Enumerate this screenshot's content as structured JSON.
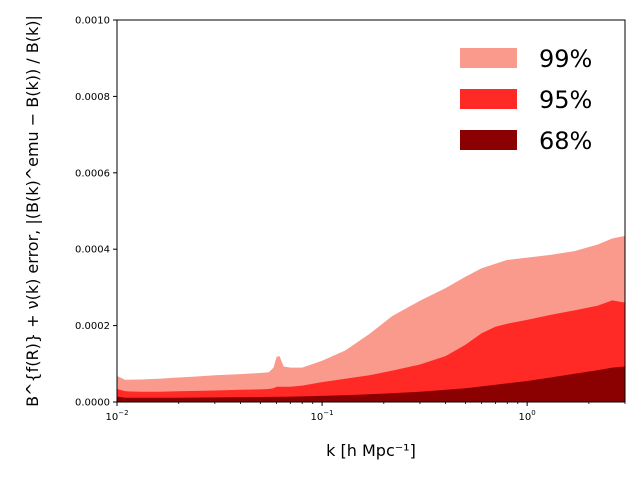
{
  "chart_data": {
    "type": "area",
    "x_scale": "log",
    "xlim": [
      0.01,
      3.0
    ],
    "ylim": [
      0.0,
      0.001
    ],
    "xlabel": "k [h Mpc⁻¹]",
    "ylabel": "B^{f(R)} + ν(k) error, |(B(k)^emu − B(k)) / B(k)|",
    "x_ticks": [
      {
        "value": 0.01,
        "base": "10",
        "exp": "−2"
      },
      {
        "value": 0.1,
        "base": "10",
        "exp": "−1"
      },
      {
        "value": 1.0,
        "base": "10",
        "exp": "0"
      }
    ],
    "y_ticks": [
      {
        "value": 0.0,
        "label": "0.0000"
      },
      {
        "value": 0.0002,
        "label": "0.0002"
      },
      {
        "value": 0.0004,
        "label": "0.0004"
      },
      {
        "value": 0.0006,
        "label": "0.0006"
      },
      {
        "value": 0.0008,
        "label": "0.0008"
      },
      {
        "value": 0.001,
        "label": "0.0010"
      }
    ],
    "legend_position": "top-right",
    "series": [
      {
        "name": "99%",
        "color": "#f99a8d",
        "x": [
          0.01,
          0.011,
          0.013,
          0.016,
          0.02,
          0.025,
          0.03,
          0.04,
          0.05,
          0.055,
          0.058,
          0.06,
          0.062,
          0.065,
          0.07,
          0.08,
          0.1,
          0.13,
          0.17,
          0.22,
          0.3,
          0.4,
          0.5,
          0.6,
          0.7,
          0.8,
          1.0,
          1.3,
          1.7,
          2.2,
          2.6,
          3.0
        ],
        "values": [
          6.8e-05,
          5.8e-05,
          5.9e-05,
          6.1e-05,
          6.4e-05,
          6.7e-05,
          7e-05,
          7.3e-05,
          7.6e-05,
          7.8e-05,
          9e-05,
          0.000118,
          0.00012,
          9.3e-05,
          9e-05,
          9e-05,
          0.000108,
          0.000135,
          0.000178,
          0.000225,
          0.000265,
          0.000298,
          0.000328,
          0.00035,
          0.000362,
          0.000372,
          0.000378,
          0.000385,
          0.000395,
          0.000412,
          0.000428,
          0.000435
        ]
      },
      {
        "name": "95%",
        "color": "#ff2a26",
        "x": [
          0.01,
          0.011,
          0.013,
          0.016,
          0.02,
          0.025,
          0.03,
          0.04,
          0.05,
          0.055,
          0.058,
          0.06,
          0.063,
          0.07,
          0.08,
          0.1,
          0.13,
          0.17,
          0.22,
          0.3,
          0.4,
          0.5,
          0.6,
          0.7,
          0.8,
          1.0,
          1.3,
          1.7,
          2.2,
          2.6,
          3.0
        ],
        "values": [
          3.4e-05,
          2.8e-05,
          2.7e-05,
          2.7e-05,
          2.8e-05,
          2.9e-05,
          3e-05,
          3.2e-05,
          3.3e-05,
          3.4e-05,
          3.6e-05,
          4e-05,
          4e-05,
          4e-05,
          4.3e-05,
          5.2e-05,
          6.1e-05,
          7e-05,
          8.2e-05,
          9.8e-05,
          0.00012,
          0.00015,
          0.00018,
          0.000197,
          0.000205,
          0.000215,
          0.000228,
          0.00024,
          0.000252,
          0.000266,
          0.00026
        ]
      },
      {
        "name": "68%",
        "color": "#8b0000",
        "x": [
          0.01,
          0.011,
          0.013,
          0.016,
          0.02,
          0.03,
          0.05,
          0.07,
          0.1,
          0.15,
          0.2,
          0.3,
          0.5,
          0.7,
          1.0,
          1.3,
          1.7,
          2.2,
          2.6,
          3.0
        ],
        "values": [
          1.4e-05,
          1.1e-05,
          1.1e-05,
          1.1e-05,
          1.1e-05,
          1.2e-05,
          1.3e-05,
          1.4e-05,
          1.6e-05,
          1.9e-05,
          2.2e-05,
          2.7e-05,
          3.6e-05,
          4.5e-05,
          5.5e-05,
          6.4e-05,
          7.4e-05,
          8.3e-05,
          9e-05,
          9.3e-05
        ]
      }
    ]
  }
}
